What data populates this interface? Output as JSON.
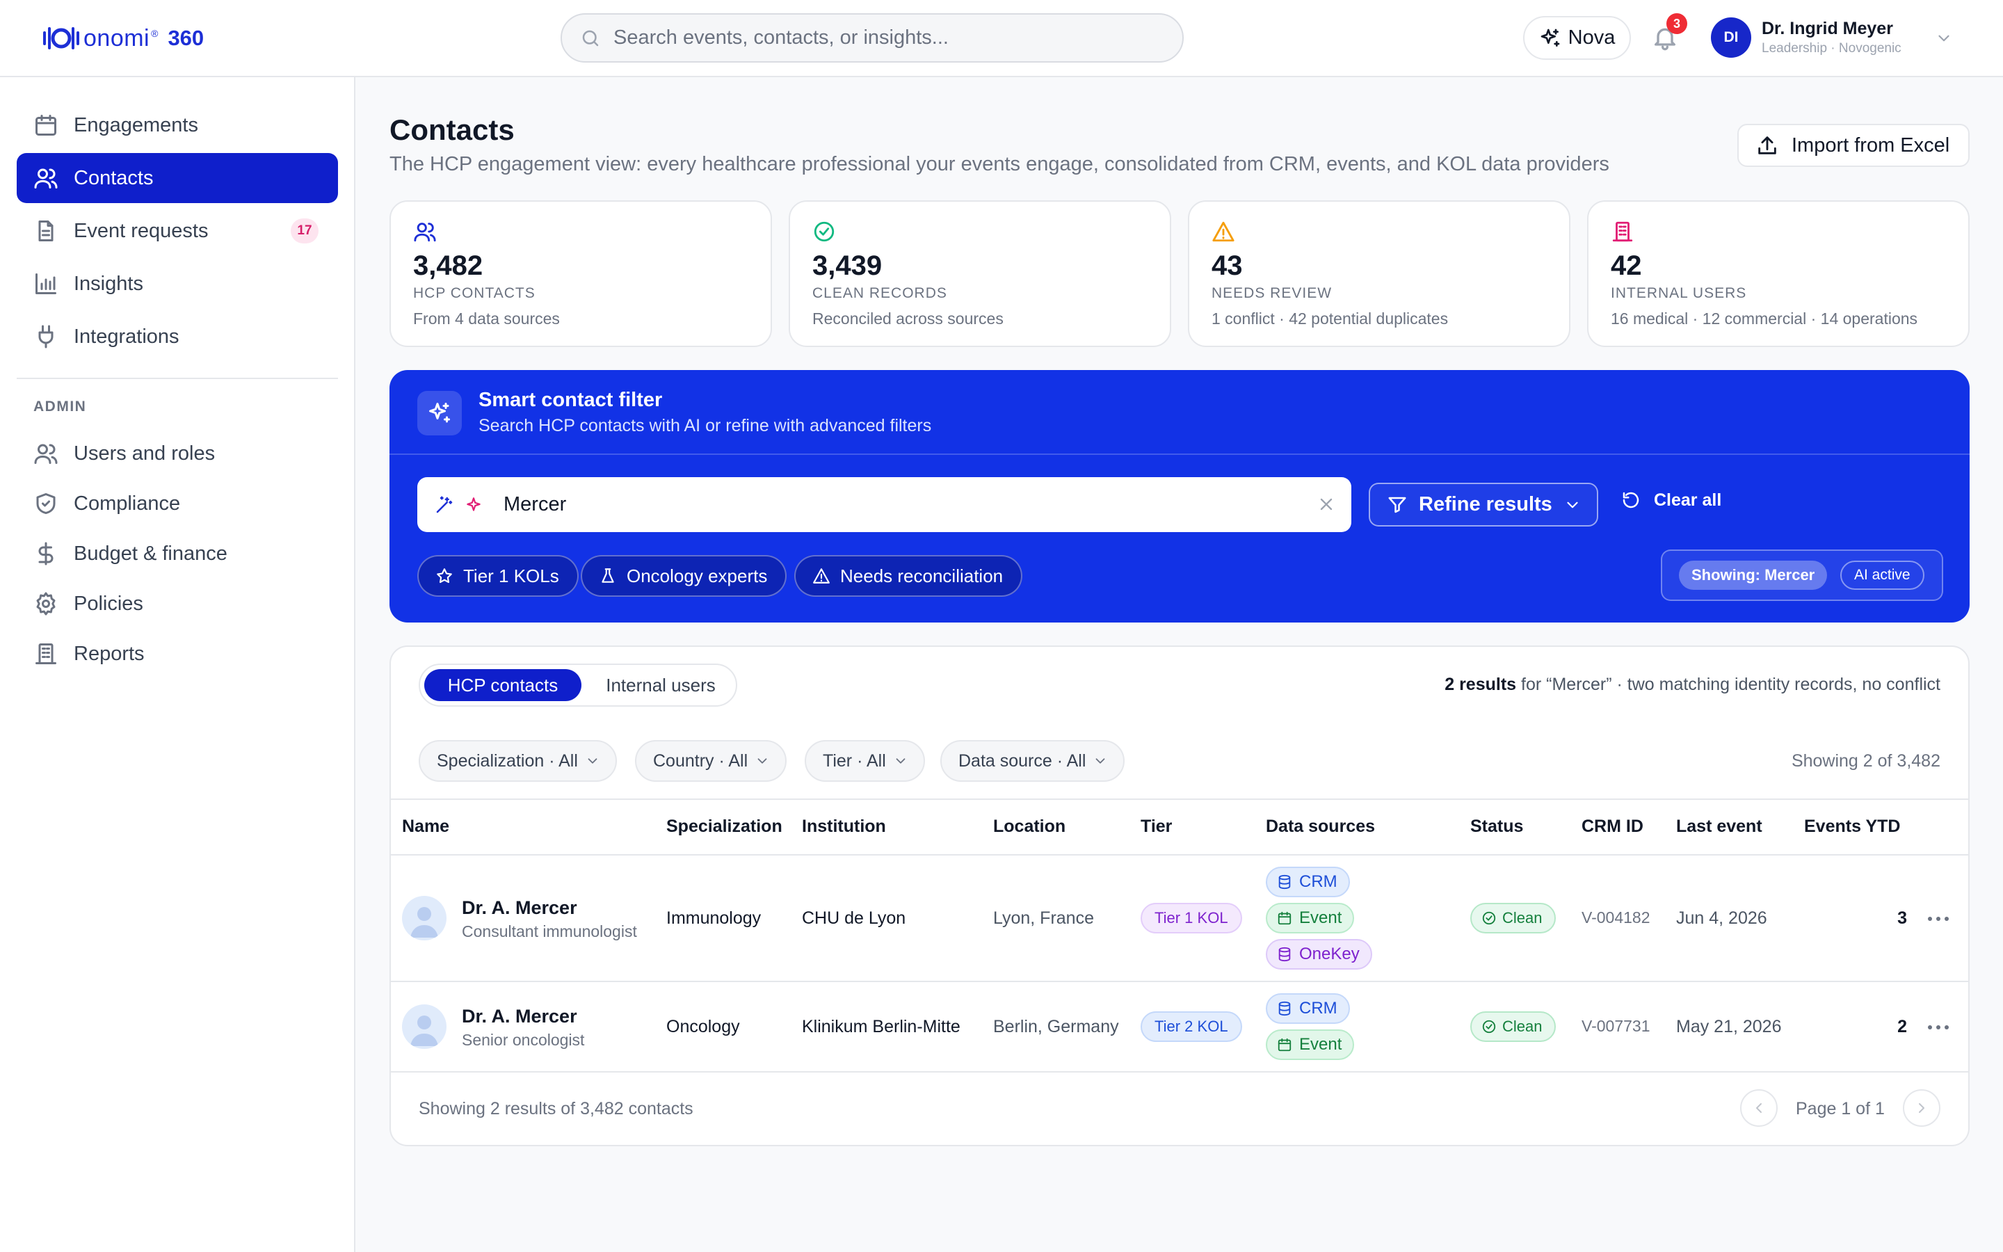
{
  "brand": {
    "name": "onomi",
    "reg": "®",
    "suffix": "360"
  },
  "search": {
    "placeholder": "Search events, contacts, or insights..."
  },
  "header": {
    "nova_label": "Nova",
    "notifications_count": "3",
    "user": {
      "initials": "DI",
      "name": "Dr. Ingrid Meyer",
      "role": "Leadership · Novogenic"
    }
  },
  "sidebar": {
    "items": [
      {
        "label": "Engagements",
        "icon": "calendar-icon"
      },
      {
        "label": "Contacts",
        "icon": "users-icon",
        "active": true
      },
      {
        "label": "Event requests",
        "icon": "document-icon",
        "badge": "17"
      },
      {
        "label": "Insights",
        "icon": "bar-chart-icon"
      },
      {
        "label": "Integrations",
        "icon": "plug-icon"
      }
    ],
    "admin_label": "ADMIN",
    "admin_items": [
      {
        "label": "Users and roles",
        "icon": "users-icon"
      },
      {
        "label": "Compliance",
        "icon": "shield-icon"
      },
      {
        "label": "Budget & finance",
        "icon": "dollar-icon"
      },
      {
        "label": "Policies",
        "icon": "gear-icon"
      },
      {
        "label": "Reports",
        "icon": "building-icon"
      }
    ]
  },
  "page": {
    "title": "Contacts",
    "subtitle": "The HCP engagement view: every healthcare professional your events engage, consolidated from CRM, events, and KOL data providers",
    "import_label": "Import from Excel"
  },
  "stats": [
    {
      "value": "3,482",
      "label": "HCP CONTACTS",
      "sub": "From 4 data sources",
      "icon": "users-icon",
      "color": "#1d2fd6"
    },
    {
      "value": "3,439",
      "label": "CLEAN RECORDS",
      "sub": "Reconciled across sources",
      "icon": "check-circle-icon",
      "color": "#10b981"
    },
    {
      "value": "43",
      "label": "NEEDS REVIEW",
      "sub": "1 conflict · 42 potential duplicates",
      "icon": "warning-icon",
      "color": "#f59e0b"
    },
    {
      "value": "42",
      "label": "INTERNAL USERS",
      "sub": "16 medical · 12 commercial · 14 operations",
      "icon": "building-icon",
      "color": "#e11d74"
    }
  ],
  "smart_filter": {
    "title": "Smart contact filter",
    "subtitle": "Search HCP contacts with AI or refine with advanced filters",
    "query": "Mercer",
    "refine_label": "Refine results",
    "clear_label": "Clear all",
    "chips": [
      "Tier 1 KOLs",
      "Oncology experts",
      "Needs reconciliation"
    ],
    "showing_label": "Showing: Mercer",
    "ai_label": "AI active"
  },
  "table_panel": {
    "tabs": [
      "HCP contacts",
      "Internal users"
    ],
    "results_count": "2 results",
    "results_rest": "for “Mercer” · two matching identity records, no conflict",
    "filters": [
      "Specialization · All",
      "Country · All",
      "Tier · All",
      "Data source · All"
    ],
    "showing_count": "Showing 2 of 3,482",
    "columns": [
      "Name",
      "Specialization",
      "Institution",
      "Location",
      "Tier",
      "Data sources",
      "Status",
      "CRM ID",
      "Last event",
      "Events YTD"
    ],
    "rows": [
      {
        "name": "Dr. A. Mercer",
        "title": "Consultant immunologist",
        "specialization": "Immunology",
        "institution": "CHU de Lyon",
        "location": "Lyon, France",
        "tier": "Tier 1 KOL",
        "sources": [
          "CRM",
          "Event",
          "OneKey"
        ],
        "status": "Clean",
        "crm_id": "V-004182",
        "last_event": "Jun 4, 2026",
        "events_ytd": "3"
      },
      {
        "name": "Dr. A. Mercer",
        "title": "Senior oncologist",
        "specialization": "Oncology",
        "institution": "Klinikum Berlin-Mitte",
        "location": "Berlin, Germany",
        "tier": "Tier 2 KOL",
        "sources": [
          "CRM",
          "Event"
        ],
        "status": "Clean",
        "crm_id": "V-007731",
        "last_event": "May 21, 2026",
        "events_ytd": "2"
      }
    ],
    "footer": "Showing 2 results of 3,482 contacts",
    "page_label": "Page 1 of 1"
  },
  "colors": {
    "primary": "#0f1fcb",
    "filter_bg": "#1232e6",
    "brand": "#1d2fd6"
  }
}
